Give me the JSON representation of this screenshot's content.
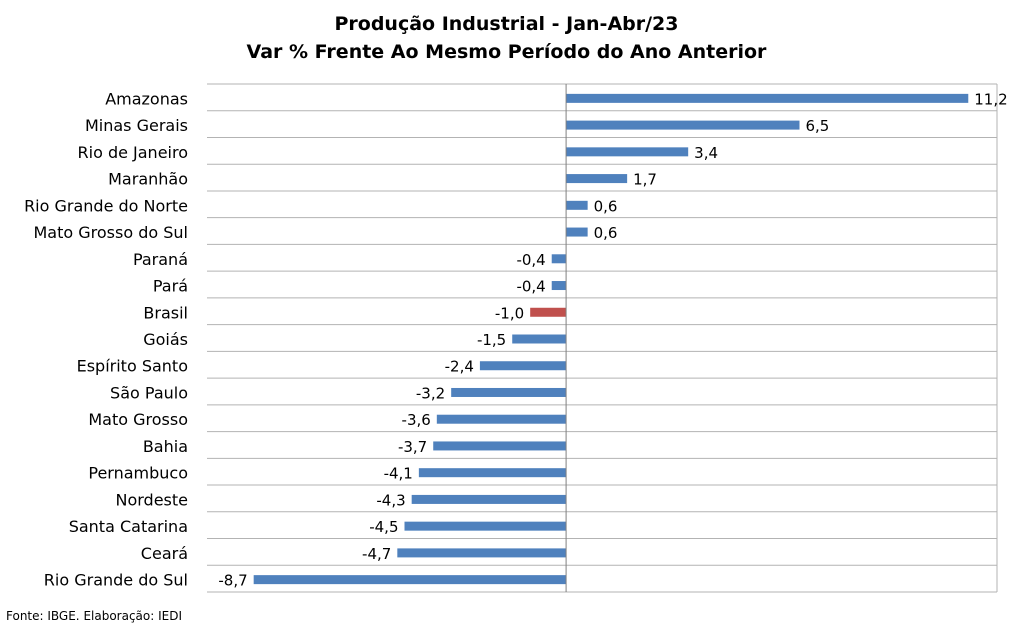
{
  "title_line1": "Produção Industrial - Jan-Abr/23",
  "title_line2": "Var % Frente Ao Mesmo Período do Ano Anterior",
  "source": "Fonte: IBGE. Elaboração: IEDI",
  "colors": {
    "default_bar": "#4f81bd",
    "highlight_bar": "#c0504d",
    "grid": "#b3b3b3"
  },
  "chart_data": {
    "type": "bar",
    "orientation": "horizontal",
    "title": "Produção Industrial - Jan-Abr/23 / Var % Frente Ao Mesmo Período do Ano Anterior",
    "xlim": [
      -10,
      12
    ],
    "grid": true,
    "categories": [
      "Amazonas",
      "Minas Gerais",
      "Rio de Janeiro",
      "Maranhão",
      "Rio Grande do Norte",
      "Mato Grosso do Sul",
      "Paraná",
      "Pará",
      "Brasil",
      "Goiás",
      "Espírito Santo",
      "São Paulo",
      "Mato Grosso",
      "Bahia",
      "Pernambuco",
      "Nordeste",
      "Santa Catarina",
      "Ceará",
      "Rio Grande do Sul"
    ],
    "values": [
      11.2,
      6.5,
      3.4,
      1.7,
      0.6,
      0.6,
      -0.4,
      -0.4,
      -1.0,
      -1.5,
      -2.4,
      -3.2,
      -3.6,
      -3.7,
      -4.1,
      -4.3,
      -4.5,
      -4.7,
      -8.7
    ],
    "value_labels": [
      "11,2",
      "6,5",
      "3,4",
      "1,7",
      "0,6",
      "0,6",
      "-0,4",
      "-0,4",
      "-1,0",
      "-1,5",
      "-2,4",
      "-3,2",
      "-3,6",
      "-3,7",
      "-4,1",
      "-4,3",
      "-4,5",
      "-4,7",
      "-8,7"
    ],
    "highlight": "Brasil"
  }
}
